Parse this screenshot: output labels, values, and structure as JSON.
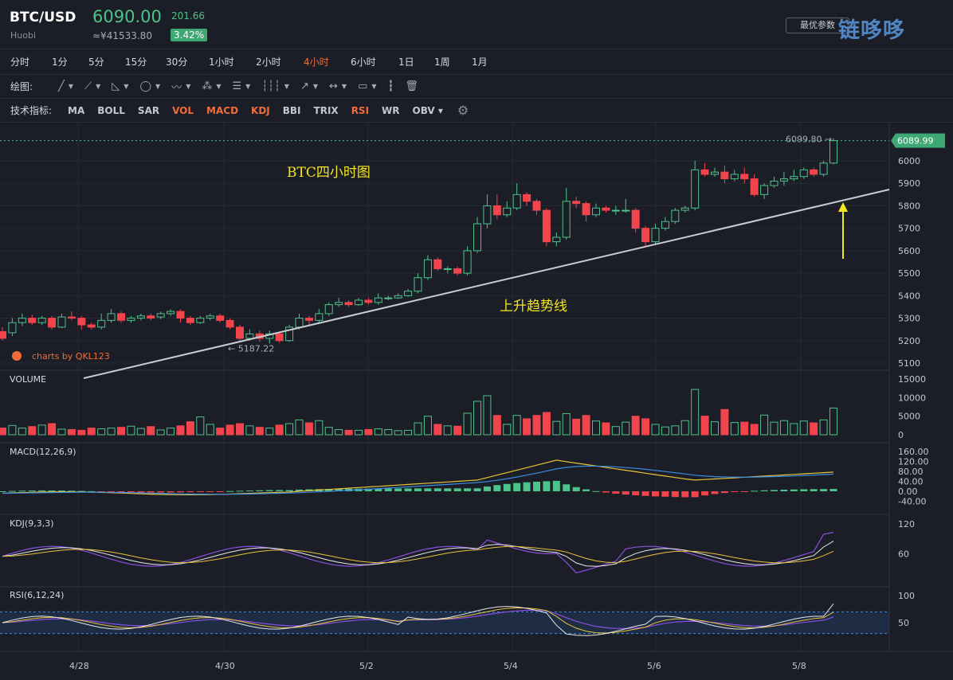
{
  "header": {
    "pair": "BTC/USD",
    "exchange": "Huobi",
    "price": "6090.00",
    "cny_price": "≈¥41533.80",
    "change": "201.66",
    "change_pct": "3.42%",
    "pref_button": "最优参数",
    "watermark": "链哆哆"
  },
  "intervals": [
    "分时",
    "1分",
    "5分",
    "15分",
    "30分",
    "1小时",
    "2小时",
    "4小时",
    "6小时",
    "1日",
    "1周",
    "1月"
  ],
  "active_interval": "4小时",
  "drawing": {
    "label": "绘图:"
  },
  "indicators_bar": {
    "label": "技术指标:",
    "items": [
      "MA",
      "BOLL",
      "SAR",
      "VOL",
      "MACD",
      "KDJ",
      "BBI",
      "TRIX",
      "RSI",
      "WR",
      "OBV"
    ],
    "active": [
      "VOL",
      "MACD",
      "KDJ",
      "RSI"
    ]
  },
  "colors": {
    "up": "#4ec28b",
    "down": "#f2444d",
    "accent": "#f26b3a",
    "annotation": "#f5e61d"
  },
  "main": {
    "annotation_title": "BTC四小时图",
    "annotation_trend": "上升趋势线",
    "high_label": "6099.80 →",
    "low_label": "← 5187.22",
    "current_price_tag": "6089.99",
    "credit": "charts by QKL123",
    "y_ticks": [
      "6000",
      "5900",
      "5800",
      "5700",
      "5600",
      "5500",
      "5400",
      "5300",
      "5200",
      "5100"
    ]
  },
  "volume": {
    "label": "VOLUME",
    "y_ticks": [
      "15000",
      "10000",
      "5000",
      "0"
    ]
  },
  "macd": {
    "label": "MACD(12,26,9)",
    "y_ticks": [
      "160.00",
      "120.00",
      "80.00",
      "40.00",
      "0.00",
      "-40.00"
    ]
  },
  "kdj": {
    "label": "KDJ(9,3,3)",
    "y_ticks": [
      "120",
      "60"
    ]
  },
  "rsi": {
    "label": "RSI(6,12,24)",
    "y_ticks": [
      "100",
      "50"
    ]
  },
  "x_axis": [
    "4/28",
    "4/30",
    "5/2",
    "5/4",
    "5/6",
    "5/8"
  ]
}
